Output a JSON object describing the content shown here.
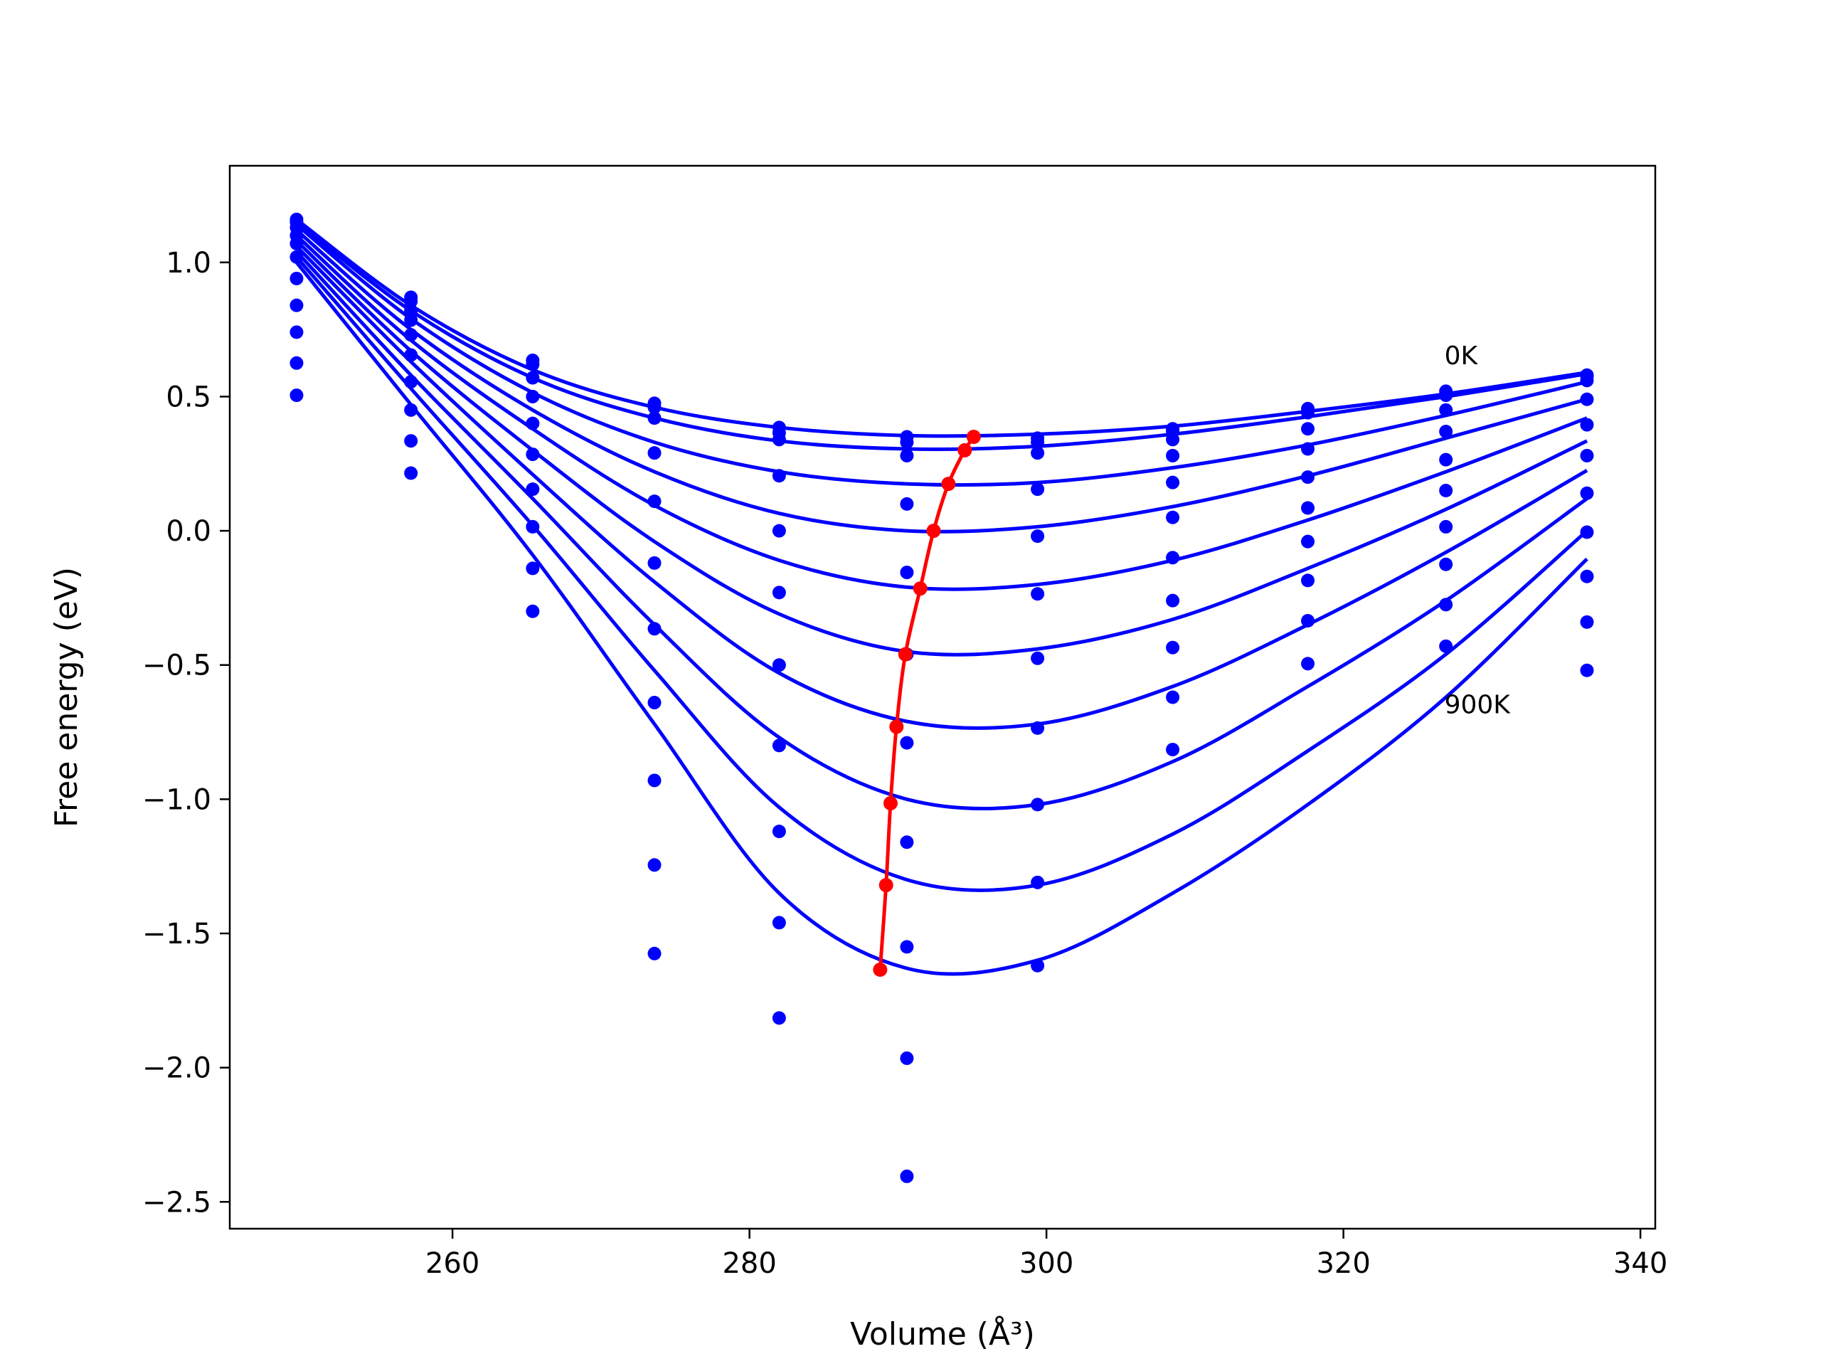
{
  "chart_data": {
    "type": "scatter",
    "title": "",
    "xlabel": "Volume (Å³)",
    "ylabel": "Free energy (eV)",
    "xlim": [
      245,
      341
    ],
    "ylim": [
      -2.6,
      1.36
    ],
    "xticks": [
      260,
      280,
      300,
      320,
      340
    ],
    "yticks": [
      -2.5,
      -2.0,
      -1.5,
      -1.0,
      -0.5,
      0.0,
      0.5,
      1.0
    ],
    "grid": false,
    "colors": {
      "data": "#0000ff",
      "minima": "#ff0000",
      "axes": "#000000"
    },
    "annotations": [
      {
        "text": "0K",
        "x": 326.8,
        "y": 0.62
      },
      {
        "text": "900K",
        "x": 326.8,
        "y": -0.68
      }
    ],
    "volumes": [
      249.5,
      257.2,
      265.4,
      273.6,
      282.0,
      290.6,
      299.4,
      308.5,
      317.6,
      326.9,
      336.4
    ],
    "series": [
      {
        "points": [
          1.16,
          0.87,
          0.635,
          0.475,
          0.385,
          0.35,
          0.345,
          0.38,
          0.455,
          0.52,
          0.58
        ],
        "fit": [
          1.16,
          0.84,
          0.6,
          0.46,
          0.385,
          0.355,
          0.36,
          0.39,
          0.445,
          0.51,
          0.59
        ]
      },
      {
        "points": [
          1.15,
          0.855,
          0.62,
          0.46,
          0.365,
          0.33,
          0.33,
          0.37,
          0.44,
          0.505,
          0.575
        ],
        "fit": [
          1.15,
          0.82,
          0.57,
          0.42,
          0.335,
          0.305,
          0.315,
          0.36,
          0.425,
          0.5,
          0.585
        ]
      },
      {
        "points": [
          1.13,
          0.82,
          0.57,
          0.42,
          0.34,
          0.28,
          0.29,
          0.34,
          0.38,
          0.45,
          0.56
        ],
        "fit": [
          1.14,
          0.79,
          0.515,
          0.33,
          0.22,
          0.175,
          0.18,
          0.235,
          0.32,
          0.43,
          0.555
        ]
      },
      {
        "points": [
          1.1,
          0.785,
          0.5,
          0.29,
          0.205,
          0.1,
          0.155,
          0.28,
          0.305,
          0.37,
          0.49
        ],
        "fit": [
          1.12,
          0.75,
          0.45,
          0.22,
          0.065,
          0.0,
          0.015,
          0.09,
          0.205,
          0.345,
          0.49
        ]
      },
      {
        "points": [
          1.07,
          0.73,
          0.4,
          0.11,
          0.0,
          -0.155,
          -0.02,
          0.18,
          0.2,
          0.265,
          0.395
        ],
        "fit": [
          1.1,
          0.71,
          0.38,
          0.095,
          -0.11,
          -0.21,
          -0.2,
          -0.11,
          0.04,
          0.22,
          0.42
        ]
      },
      {
        "points": [
          1.02,
          0.655,
          0.285,
          -0.12,
          -0.23,
          -0.46,
          -0.235,
          0.05,
          0.085,
          0.15,
          0.28
        ],
        "fit": [
          1.08,
          0.67,
          0.3,
          -0.04,
          -0.31,
          -0.45,
          -0.44,
          -0.33,
          -0.14,
          0.08,
          0.335
        ]
      },
      {
        "points": [
          0.94,
          0.555,
          0.155,
          -0.365,
          -0.5,
          -0.79,
          -0.475,
          -0.1,
          -0.04,
          0.015,
          0.14
        ],
        "fit": [
          1.06,
          0.63,
          0.21,
          -0.19,
          -0.53,
          -0.71,
          -0.72,
          -0.58,
          -0.35,
          -0.08,
          0.225
        ]
      },
      {
        "points": [
          0.84,
          0.45,
          0.015,
          -0.64,
          -0.8,
          -1.16,
          -0.735,
          -0.26,
          -0.185,
          -0.125,
          -0.005
        ],
        "fit": [
          1.04,
          0.58,
          0.12,
          -0.35,
          -0.77,
          -1.0,
          -1.02,
          -0.86,
          -0.58,
          -0.26,
          0.12
        ]
      },
      {
        "points": [
          0.74,
          0.335,
          -0.14,
          -0.93,
          -1.12,
          -1.55,
          -1.02,
          -0.435,
          -0.335,
          -0.275,
          -0.17
        ],
        "fit": [
          1.02,
          0.53,
          0.02,
          -0.52,
          -1.03,
          -1.3,
          -1.32,
          -1.13,
          -0.82,
          -0.46,
          0.0
        ]
      },
      {
        "points": [
          0.625,
          0.215,
          -0.3,
          -1.245,
          -1.46,
          -1.965,
          -1.31,
          -0.62,
          -0.495,
          -0.43,
          -0.34
        ],
        "fit": [
          1.0,
          0.47,
          -0.09,
          -0.72,
          -1.35,
          -1.63,
          -1.6,
          -1.35,
          -1.02,
          -0.62,
          -0.105
        ]
      },
      {
        "points": [
          0.505,
          null,
          null,
          -1.575,
          -1.815,
          -2.405,
          -1.62,
          -0.815,
          null,
          null,
          -0.52
        ],
        "fit": null
      }
    ],
    "minima_curve": {
      "x": [
        295.1,
        294.5,
        293.4,
        292.4,
        291.5,
        290.5,
        289.9,
        289.5,
        289.2,
        288.8
      ],
      "y": [
        0.35,
        0.3,
        0.175,
        0.0,
        -0.215,
        -0.46,
        -0.73,
        -1.015,
        -1.32,
        -1.635
      ]
    }
  }
}
